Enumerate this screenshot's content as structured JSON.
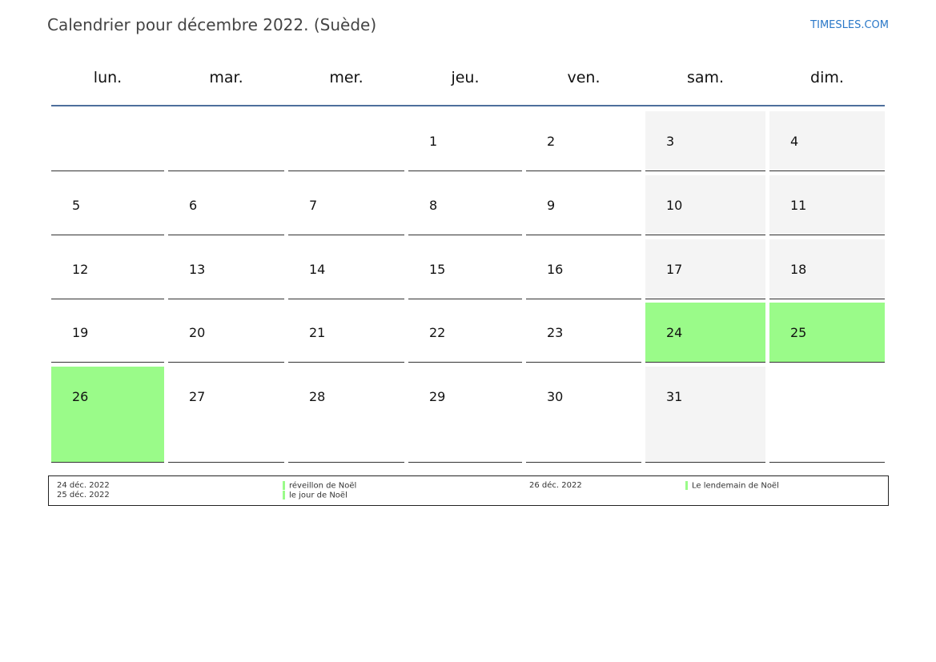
{
  "header": {
    "title": "Calendrier pour décembre 2022. (Suède)",
    "brand": "TIMESLES.COM"
  },
  "weekdays": [
    "lun.",
    "mar.",
    "mer.",
    "jeu.",
    "ven.",
    "sam.",
    "dim."
  ],
  "colors": {
    "weekend": "#f4f4f4",
    "holiday": "#9afb89",
    "rule": "#4d6f9c"
  },
  "weeks": [
    [
      {
        "day": ""
      },
      {
        "day": ""
      },
      {
        "day": ""
      },
      {
        "day": "1"
      },
      {
        "day": "2"
      },
      {
        "day": "3",
        "type": "weekend"
      },
      {
        "day": "4",
        "type": "weekend"
      }
    ],
    [
      {
        "day": "5"
      },
      {
        "day": "6"
      },
      {
        "day": "7"
      },
      {
        "day": "8"
      },
      {
        "day": "9"
      },
      {
        "day": "10",
        "type": "weekend"
      },
      {
        "day": "11",
        "type": "weekend"
      }
    ],
    [
      {
        "day": "12"
      },
      {
        "day": "13"
      },
      {
        "day": "14"
      },
      {
        "day": "15"
      },
      {
        "day": "16"
      },
      {
        "day": "17",
        "type": "weekend"
      },
      {
        "day": "18",
        "type": "weekend"
      }
    ],
    [
      {
        "day": "19"
      },
      {
        "day": "20"
      },
      {
        "day": "21"
      },
      {
        "day": "22"
      },
      {
        "day": "23"
      },
      {
        "day": "24",
        "type": "holiday"
      },
      {
        "day": "25",
        "type": "holiday"
      }
    ],
    [
      {
        "day": "26",
        "type": "holiday"
      },
      {
        "day": "27"
      },
      {
        "day": "28"
      },
      {
        "day": "29"
      },
      {
        "day": "30"
      },
      {
        "day": "31",
        "type": "weekend"
      },
      {
        "day": ""
      }
    ]
  ],
  "holidays": [
    {
      "date": "24 déc. 2022",
      "name": "réveillon de Noël"
    },
    {
      "date": "25 déc. 2022",
      "name": "le jour de Noël"
    },
    {
      "date": "26 déc. 2022",
      "name": "Le lendemain de Noël"
    }
  ]
}
